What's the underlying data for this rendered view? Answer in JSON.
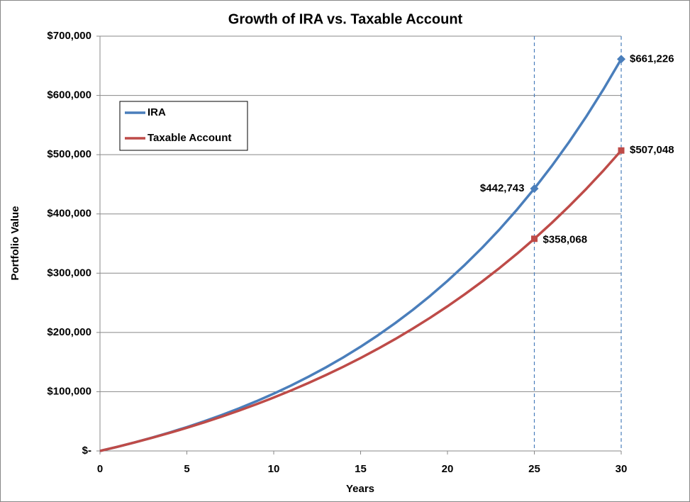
{
  "chart_data": {
    "type": "line",
    "title": "Growth of IRA vs. Taxable Account",
    "x_label": "Years",
    "y_label": "Portfolio Value",
    "x": [
      0,
      1,
      2,
      3,
      4,
      5,
      6,
      7,
      8,
      9,
      10,
      11,
      12,
      13,
      14,
      15,
      16,
      17,
      18,
      19,
      20,
      21,
      22,
      23,
      24,
      25,
      26,
      27,
      28,
      29,
      30
    ],
    "series": [
      {
        "name": "IRA",
        "color": "#4a7ebb",
        "marker": "diamond",
        "values": [
          0,
          7000,
          14490,
          22504,
          31080,
          40255,
          50073,
          60578,
          71819,
          83846,
          96715,
          110485,
          125219,
          140985,
          157853,
          175903,
          195216,
          215882,
          237993,
          261653,
          286968,
          314056,
          343040,
          374053,
          407237,
          442743,
          480735,
          521387,
          564884,
          611426,
          661226
        ],
        "value_labels": [
          null,
          null,
          null,
          null,
          null,
          null,
          null,
          null,
          null,
          null,
          null,
          null,
          null,
          null,
          null,
          null,
          null,
          null,
          null,
          null,
          null,
          null,
          null,
          null,
          null,
          "$442,743",
          null,
          null,
          null,
          null,
          "$661,226"
        ]
      },
      {
        "name": "Taxable Account",
        "color": "#be4b48",
        "marker": "square",
        "values": [
          0,
          7000,
          14385,
          22176,
          30396,
          39068,
          48216,
          57868,
          68051,
          78794,
          90127,
          102084,
          114699,
          128008,
          142048,
          156861,
          172488,
          188975,
          206369,
          224719,
          244078,
          264503,
          286050,
          308783,
          332766,
          358068,
          384762,
          412924,
          442635,
          473979,
          507048
        ],
        "value_labels": [
          null,
          null,
          null,
          null,
          null,
          null,
          null,
          null,
          null,
          null,
          null,
          null,
          null,
          null,
          null,
          null,
          null,
          null,
          null,
          null,
          null,
          null,
          null,
          null,
          null,
          "$358,068",
          null,
          null,
          null,
          null,
          "$507,048"
        ]
      }
    ],
    "reference_lines": [
      25,
      30
    ],
    "reference_line_color": "#4a7ebb",
    "xlim": [
      0,
      30
    ],
    "xticks": [
      0,
      5,
      10,
      15,
      20,
      25,
      30
    ],
    "ylim": [
      0,
      700000
    ],
    "yticks": [
      {
        "value": 0,
        "label": "$-"
      },
      {
        "value": 100000,
        "label": "$100,000"
      },
      {
        "value": 200000,
        "label": "$200,000"
      },
      {
        "value": 300000,
        "label": "$300,000"
      },
      {
        "value": 400000,
        "label": "$400,000"
      },
      {
        "value": 500000,
        "label": "$500,000"
      },
      {
        "value": 600000,
        "label": "$600,000"
      },
      {
        "value": 700000,
        "label": "$700,000"
      }
    ],
    "grid": true,
    "legend": "upper left"
  }
}
